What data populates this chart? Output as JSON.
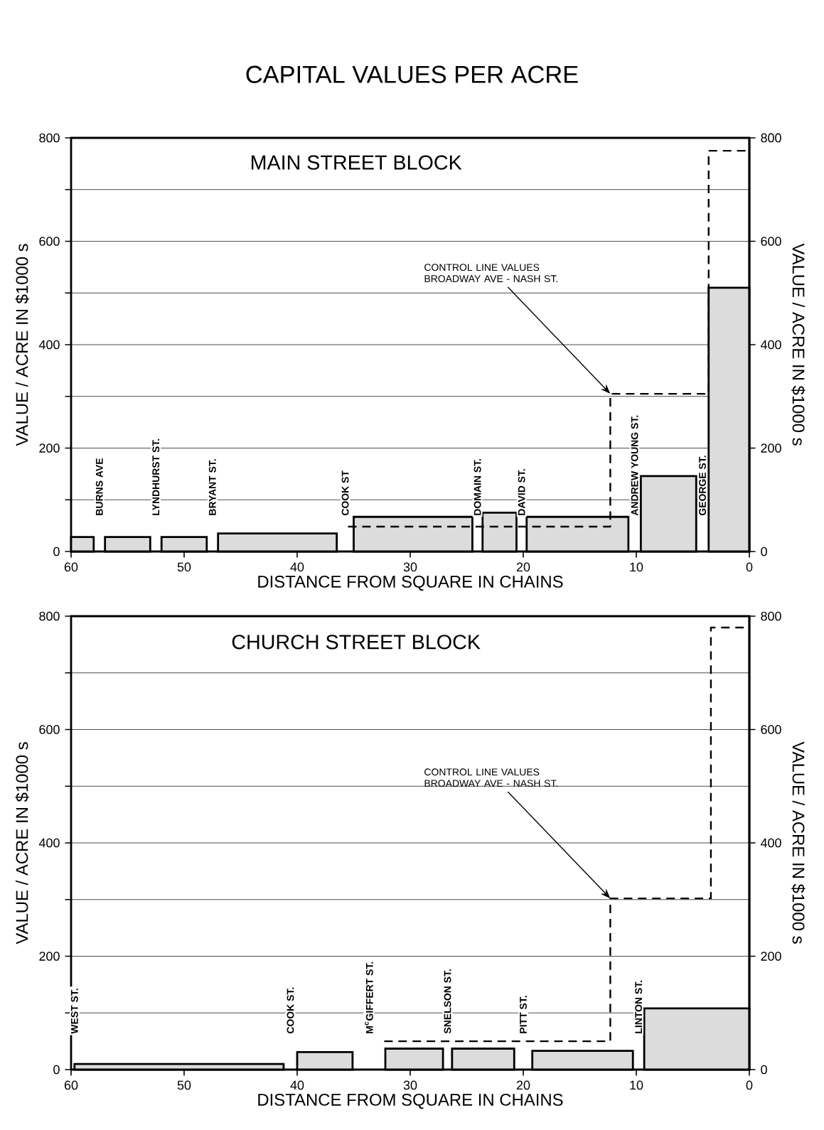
{
  "chart_data": [
    {
      "type": "histogram",
      "title": "CAPITAL VALUES PER ACRE",
      "subtitle": "MAIN STREET BLOCK",
      "xlabel": "DISTANCE FROM SQUARE IN CHAINS",
      "ylabel": "VALUE / ACRE IN $1000 s",
      "y2label": "VALUE / ACRE IN $1000 s",
      "xlim": [
        60,
        0
      ],
      "xticks": [
        60,
        50,
        40,
        30,
        20,
        10,
        0
      ],
      "ylim": [
        0,
        800
      ],
      "yticks": [
        0,
        {
          "value": 100,
          "label": null
        },
        200,
        {
          "value": 300,
          "label": null
        },
        400,
        {
          "value": 500,
          "label": null
        },
        600,
        {
          "value": 700,
          "label": null
        },
        800
      ],
      "y2lim": [
        0,
        800
      ],
      "y2ticks": [
        0,
        200,
        400,
        600,
        800
      ],
      "grid": "y",
      "series": [
        {
          "color": "#dcdcdc",
          "bins": [
            60,
            58,
            57,
            53,
            52,
            48,
            47,
            36.5,
            35,
            24.5,
            23.6,
            20.6,
            19.7,
            10.7,
            9.6,
            4.7,
            3.6,
            0
          ],
          "values": [
            28,
            null,
            28,
            null,
            28,
            null,
            35,
            null,
            67,
            null,
            75,
            null,
            67,
            null,
            146,
            null,
            510
          ]
        },
        {
          "type": "line",
          "color": "#000000",
          "line_style": "dashed",
          "x": [
            35.5,
            12.3,
            12.3,
            3.6,
            3.6,
            0
          ],
          "values": [
            48,
            48,
            305,
            305,
            775,
            775
          ]
        }
      ],
      "annotations": [
        {
          "text": "CONTROL LINE VALUES BROADWAY AVE - NASH ST.",
          "x": 12.3,
          "y": 305
        },
        "BURNS AVE",
        "LYNDHURST ST.",
        "BRYANT ST.",
        "COOK ST",
        "DOMAIN ST.",
        "DAVID ST.",
        "ANDREW YOUNG ST.",
        "GEORGE ST."
      ]
    },
    {
      "type": "histogram",
      "subtitle": "CHURCH STREET BLOCK",
      "xlabel": "DISTANCE FROM SQUARE IN CHAINS",
      "ylabel": "VALUE / ACRE IN $1000 s",
      "y2label": "VALUE / ACRE IN $1000 s",
      "xlim": [
        60,
        0
      ],
      "xticks": [
        60,
        50,
        40,
        30,
        20,
        10,
        0
      ],
      "ylim": [
        0,
        800
      ],
      "yticks": [
        0,
        {
          "value": 100,
          "label": null
        },
        200,
        {
          "value": 300,
          "label": null
        },
        400,
        {
          "value": 500,
          "label": null
        },
        600,
        {
          "value": 700,
          "label": null
        },
        800
      ],
      "y2lim": [
        0,
        800
      ],
      "y2ticks": [
        0,
        200,
        400,
        600,
        800
      ],
      "grid": "y",
      "series": [
        {
          "color": "#dcdcdc",
          "bins": [
            59.7,
            41.2,
            40,
            35.1,
            32.2,
            27.1,
            26.3,
            20.8,
            19.2,
            10.3,
            9.3,
            0
          ],
          "values": [
            10,
            null,
            31,
            null,
            37,
            null,
            37,
            null,
            33,
            null,
            108
          ]
        },
        {
          "type": "line",
          "color": "#000000",
          "line_style": "dashed",
          "x": [
            32.3,
            12.3,
            12.3,
            3.4,
            3.4,
            0
          ],
          "values": [
            50,
            50,
            302,
            302,
            780,
            780
          ]
        }
      ],
      "annotations": [
        {
          "text": "CONTROL LINE VALUES BROADWAY AVE - NASH ST.",
          "x": 12.3,
          "y": 302
        },
        "WEST ST.",
        "COOK ST.",
        "M$^{c}$GIFFERT ST.",
        "SNELSON ST.",
        "PITT ST.",
        "LINTON ST."
      ]
    }
  ]
}
